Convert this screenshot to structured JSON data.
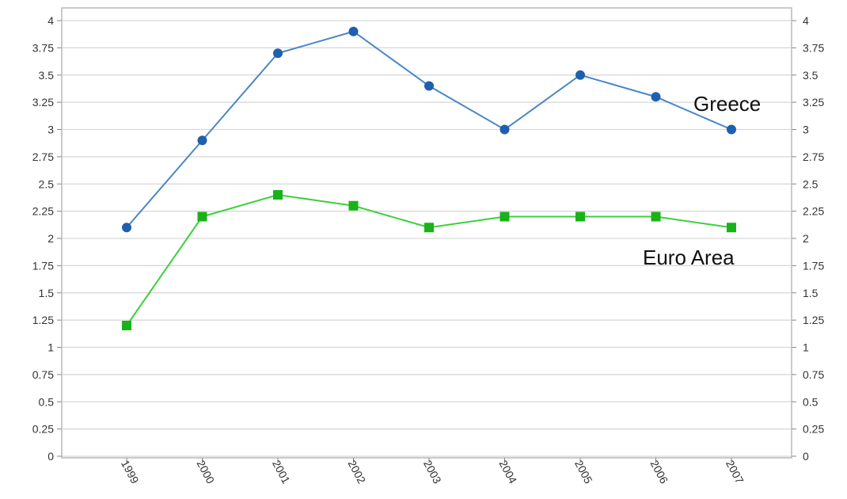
{
  "chart_data": {
    "type": "line",
    "title": "",
    "xlabel": "",
    "ylabel": "",
    "categories": [
      "1999",
      "2000",
      "2001",
      "2002",
      "2003",
      "2004",
      "2005",
      "2006",
      "2007"
    ],
    "y_ticks": [
      "0",
      "0.25",
      "0.5",
      "0.75",
      "1",
      "1.25",
      "1.5",
      "1.75",
      "2",
      "2.25",
      "2.5",
      "2.75",
      "3",
      "3.25",
      "3.5",
      "3.75",
      "4"
    ],
    "ylim": [
      0,
      4
    ],
    "grid": true,
    "legend": "none",
    "series": [
      {
        "name": "Greece",
        "color": "#4a86c8",
        "marker": "circle",
        "marker_color": "#1f5fae",
        "values": [
          2.1,
          2.9,
          3.7,
          3.9,
          3.4,
          3.0,
          3.5,
          3.3,
          3.0
        ]
      },
      {
        "name": "Euro Area",
        "color": "#3ad13a",
        "marker": "square",
        "marker_color": "#19b219",
        "values": [
          1.2,
          2.2,
          2.4,
          2.3,
          2.1,
          2.2,
          2.2,
          2.2,
          2.1
        ]
      }
    ]
  }
}
